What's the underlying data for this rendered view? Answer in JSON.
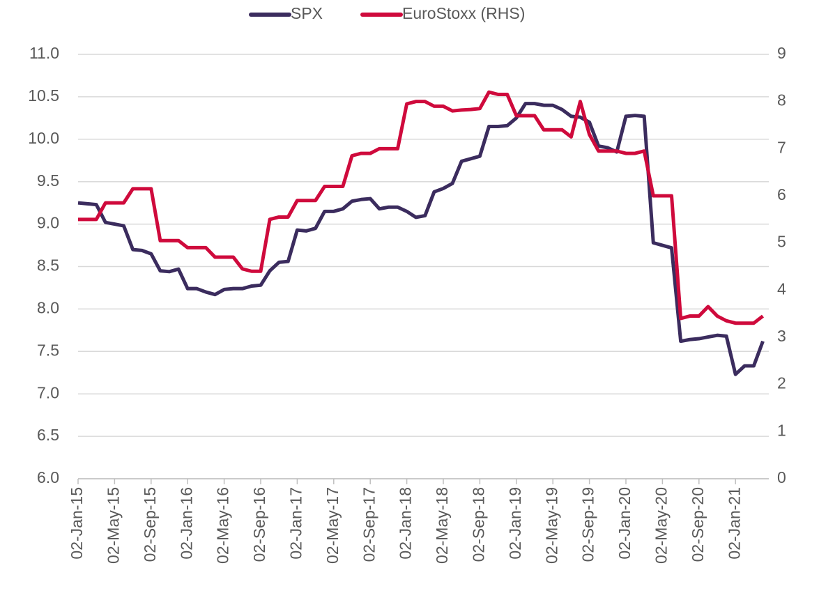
{
  "chart_data": {
    "type": "line",
    "categories": [
      "02-Jan-15",
      null,
      null,
      null,
      "02-May-15",
      null,
      null,
      null,
      "02-Sep-15",
      null,
      null,
      null,
      "02-Jan-16",
      null,
      null,
      null,
      "02-May-16",
      null,
      null,
      null,
      "02-Sep-16",
      null,
      null,
      null,
      "02-Jan-17",
      null,
      null,
      null,
      "02-May-17",
      null,
      null,
      null,
      "02-Sep-17",
      null,
      null,
      null,
      "02-Jan-18",
      null,
      null,
      null,
      "02-May-18",
      null,
      null,
      null,
      "02-Sep-18",
      null,
      null,
      null,
      "02-Jan-19",
      null,
      null,
      null,
      "02-May-19",
      null,
      null,
      null,
      "02-Sep-19",
      null,
      null,
      null,
      "02-Jan-20",
      null,
      null,
      null,
      "02-May-20",
      null,
      null,
      null,
      "02-Sep-20",
      null,
      null,
      null,
      "02-Jan-21",
      null,
      null,
      null
    ],
    "series": [
      {
        "name": "SPX",
        "color": "#3b2c5e",
        "values": [
          9.25,
          9.24,
          9.23,
          9.02,
          9.0,
          8.98,
          8.7,
          8.69,
          8.65,
          8.45,
          8.44,
          8.47,
          8.24,
          8.24,
          8.2,
          8.17,
          8.23,
          8.24,
          8.24,
          8.27,
          8.28,
          8.45,
          8.55,
          8.56,
          8.93,
          8.92,
          8.95,
          9.15,
          9.15,
          9.18,
          9.27,
          9.29,
          9.3,
          9.18,
          9.2,
          9.2,
          9.15,
          9.08,
          9.1,
          9.38,
          9.42,
          9.48,
          9.74,
          9.77,
          9.8,
          10.15,
          10.15,
          10.16,
          10.25,
          10.42,
          10.42,
          10.4,
          10.4,
          10.35,
          10.27,
          10.26,
          10.2,
          9.92,
          9.9,
          9.85,
          10.27,
          10.28,
          10.27,
          8.78,
          8.75,
          8.72,
          7.62,
          7.64,
          7.65,
          7.67,
          7.69,
          7.68,
          7.23,
          7.33,
          7.33,
          7.62
        ]
      },
      {
        "name": "EuroStoxx (RHS)",
        "color": "#cf0a3c",
        "axis": "y2",
        "values": [
          5.5,
          5.5,
          5.5,
          5.85,
          5.85,
          5.85,
          6.15,
          6.15,
          6.15,
          5.05,
          5.05,
          5.05,
          4.9,
          4.9,
          4.9,
          4.7,
          4.7,
          4.7,
          4.45,
          4.4,
          4.4,
          5.5,
          5.55,
          5.55,
          5.9,
          5.9,
          5.9,
          6.2,
          6.2,
          6.2,
          6.85,
          6.9,
          6.9,
          7.0,
          7.0,
          7.0,
          7.95,
          8.0,
          8.0,
          7.9,
          7.9,
          7.8,
          7.82,
          7.83,
          7.85,
          8.2,
          8.15,
          8.15,
          7.7,
          7.7,
          7.7,
          7.4,
          7.4,
          7.4,
          7.25,
          8.0,
          7.3,
          6.95,
          6.95,
          6.95,
          6.9,
          6.9,
          6.95,
          6.0,
          6.0,
          6.0,
          3.4,
          3.45,
          3.45,
          3.65,
          3.45,
          3.35,
          3.3,
          3.3,
          3.3,
          3.45
        ]
      }
    ],
    "ylim": [
      6,
      11
    ],
    "yticks": [
      {
        "value": 6,
        "label": "6.0"
      },
      6.5,
      {
        "value": 7,
        "label": "7.0"
      },
      7.5,
      {
        "value": 8,
        "label": "8.0"
      },
      8.5,
      {
        "value": 9,
        "label": "9.0"
      },
      9.5,
      {
        "value": 10,
        "label": "10.0"
      },
      10.5,
      {
        "value": 11,
        "label": "11.0"
      }
    ],
    "y2lim": [
      0,
      9
    ],
    "y2ticks": [
      0,
      1,
      2,
      3,
      4,
      5,
      6,
      7,
      8,
      9
    ],
    "grid": true,
    "legend": "top"
  }
}
